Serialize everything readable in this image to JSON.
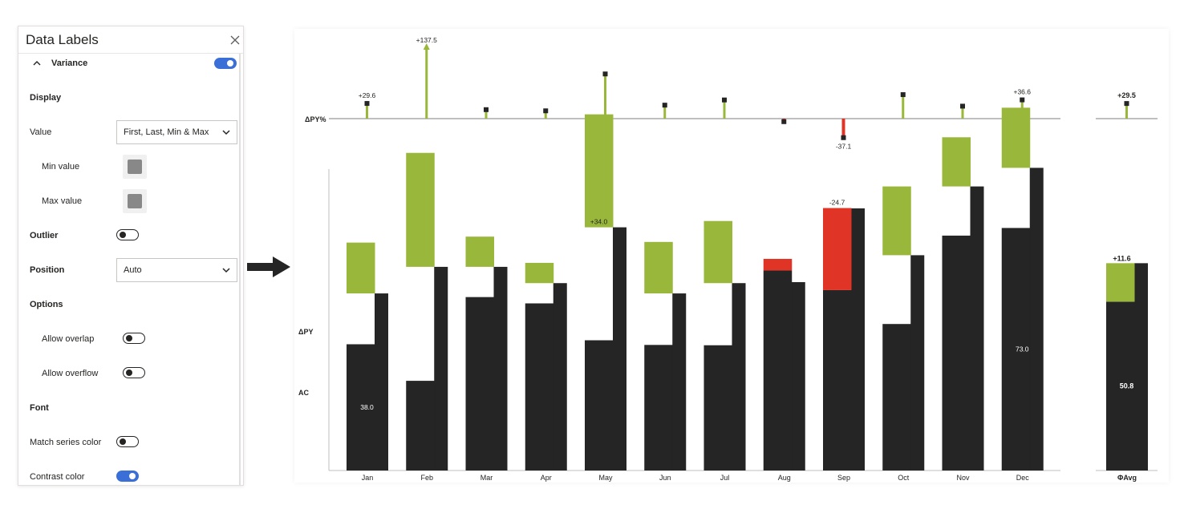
{
  "panel": {
    "title": "Data Labels",
    "close_icon": "close-icon",
    "variance": {
      "label": "Variance",
      "toggle_on": true
    },
    "display_header": "Display",
    "value": {
      "label": "Value",
      "selected": "First, Last, Min & Max"
    },
    "min_value": {
      "label": "Min value",
      "color": "#888888"
    },
    "max_value": {
      "label": "Max value",
      "color": "#888888"
    },
    "outlier": {
      "label": "Outlier",
      "toggle_on": false
    },
    "position": {
      "label": "Position",
      "selected": "Auto"
    },
    "options_header": "Options",
    "allow_overlap": {
      "label": "Allow overlap",
      "toggle_on": false
    },
    "allow_overflow": {
      "label": "Allow overflow",
      "toggle_on": false
    },
    "font_header": "Font",
    "match_series_color": {
      "label": "Match series color",
      "toggle_on": false
    },
    "contrast_color": {
      "label": "Contrast color",
      "toggle_on": true
    }
  },
  "chart_data": {
    "type": "bar",
    "categories": [
      "Jan",
      "Feb",
      "Mar",
      "Apr",
      "May",
      "Jun",
      "Jul",
      "Aug",
      "Sep",
      "Oct",
      "Nov",
      "Dec"
    ],
    "row_labels": {
      "pct": "ΔPY%",
      "dpy": "ΔPY",
      "ac": "AC"
    },
    "ac": [
      38.0,
      27.0,
      52.2,
      50.3,
      39.2,
      37.8,
      37.7,
      60.2,
      54.3,
      44.1,
      70.7,
      73.0
    ],
    "py": [
      53.3,
      61.3,
      61.3,
      56.4,
      73.2,
      53.3,
      56.4,
      56.7,
      78.9,
      64.8,
      85.5,
      91.1
    ],
    "delta_py": [
      15.3,
      34.3,
      9.1,
      6.1,
      34.0,
      15.5,
      18.7,
      -3.5,
      -24.7,
      20.7,
      14.8,
      18.1
    ],
    "delta_py_pct": [
      29.6,
      137.5,
      17.5,
      15.2,
      87.1,
      26.3,
      36.4,
      -5.9,
      -37.1,
      46.8,
      24.3,
      36.6
    ],
    "ac_labels": {
      "Jan": "38.0",
      "Dec": "73.0"
    },
    "delta_labels": {
      "May": "+34.0",
      "Sep": "-24.7"
    },
    "pct_labels": {
      "Jan": "+29.6",
      "Feb": "+137.5",
      "Sep": "-37.1",
      "Dec": "+36.6"
    },
    "avg": {
      "label": "ΦAvg",
      "ac": 50.8,
      "ac_label": "50.8",
      "delta": 11.6,
      "delta_label": "+11.6",
      "pct": 29.5,
      "pct_label": "+29.5"
    },
    "colors": {
      "ac": "#252525",
      "pos": "#99b83b",
      "neg": "#e03427",
      "axis": "#bfbfbf"
    }
  }
}
